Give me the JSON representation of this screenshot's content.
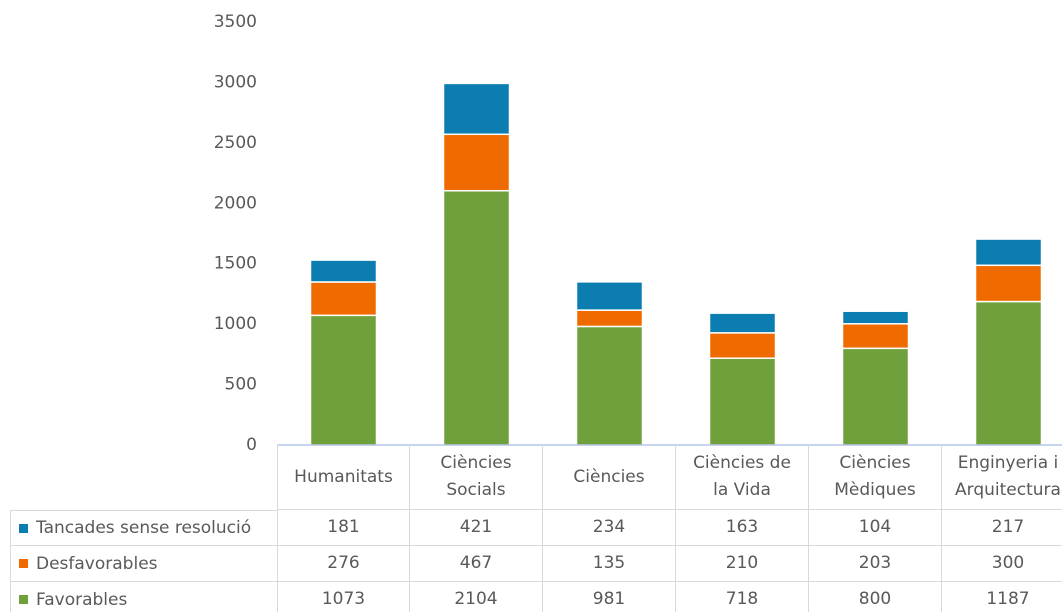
{
  "chart_data": {
    "type": "stacked_bar",
    "categories": [
      "Humanitats",
      "Ciències Socials",
      "Ciències",
      "Ciències de la Vida",
      "Ciències Mèdiques",
      "Enginyeria i Arquitectura"
    ],
    "series": [
      {
        "name": "Tancades sense resolució",
        "color": "#0b7db0",
        "values": [
          181,
          421,
          234,
          163,
          104,
          217
        ]
      },
      {
        "name": "Desfavorables",
        "color": "#ef6b00",
        "values": [
          276,
          467,
          135,
          210,
          203,
          300
        ]
      },
      {
        "name": "Favorables",
        "color": "#70a03c",
        "values": [
          1073,
          2104,
          981,
          718,
          800,
          1187
        ]
      }
    ],
    "ylim": [
      0,
      3500
    ],
    "yticks": [
      0,
      500,
      1000,
      1500,
      2000,
      2500,
      3000,
      3500
    ],
    "grid": false
  }
}
